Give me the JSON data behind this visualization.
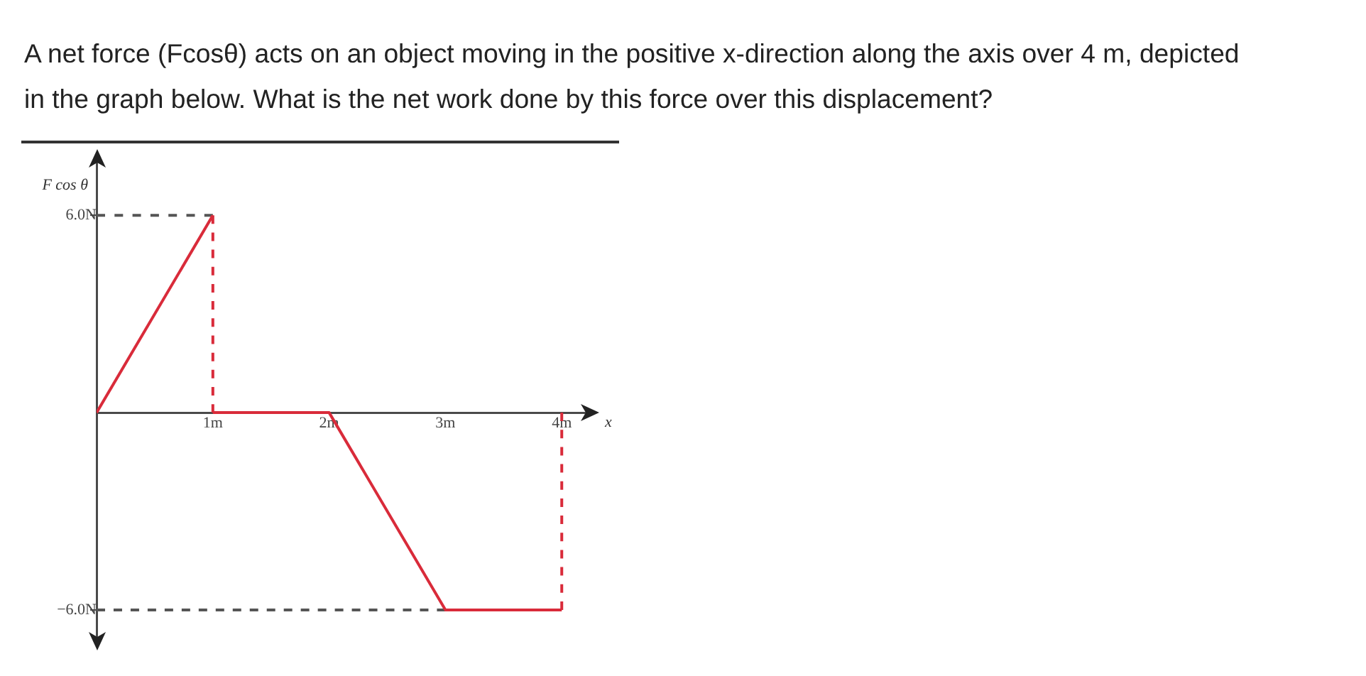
{
  "chart_data": {
    "type": "line",
    "title": "A net force (Fcosθ) acts on an object moving in the positive x-direction along the axis over 4 m, depicted in the graph below. What is the net work done by this force over this displacement?",
    "xlabel": "x",
    "ylabel": "F cos θ",
    "series": [
      {
        "x": [
          0,
          1
        ],
        "values": [
          0,
          6
        ],
        "color": "#d92b3a",
        "line_style": "solid"
      },
      {
        "x": [
          1,
          1
        ],
        "values": [
          6,
          0
        ],
        "color": "#d92b3a",
        "line_style": "dashed"
      },
      {
        "x": [
          1,
          2,
          3,
          4
        ],
        "values": [
          0,
          0,
          -6,
          -6
        ],
        "color": "#d92b3a",
        "line_style": "solid"
      },
      {
        "x": [
          4,
          4
        ],
        "values": [
          -6,
          0
        ],
        "color": "#d92b3a",
        "line_style": "dashed"
      },
      {
        "x": [
          0,
          1
        ],
        "values": [
          6,
          6
        ],
        "color": "#555555",
        "line_style": "dashed"
      },
      {
        "x": [
          0,
          3
        ],
        "values": [
          -6,
          -6
        ],
        "color": "#555555",
        "line_style": "dashed"
      }
    ],
    "xlim": [
      0,
      4.2
    ],
    "xticks": [
      {
        "value": 1,
        "label": "1m"
      },
      {
        "value": 2,
        "label": "2m"
      },
      {
        "value": 3,
        "label": "3m"
      },
      {
        "value": 4,
        "label": "4m"
      }
    ],
    "ylim": [
      -6.8,
      7.6
    ],
    "yticks": [
      {
        "value": 6,
        "label": "6.0N"
      },
      {
        "value": -6,
        "label": "−6.0N"
      }
    ],
    "grid": false,
    "legend": false,
    "marker": "none"
  }
}
